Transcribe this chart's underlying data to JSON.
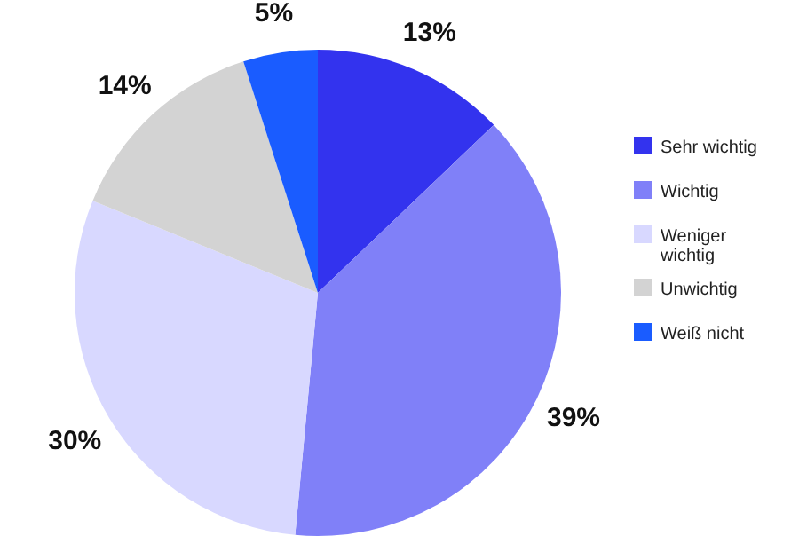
{
  "chart_data": {
    "type": "pie",
    "categories": [
      "Sehr wichtig",
      "Wichtig",
      "Weniger wichtig",
      "Unwichtig",
      "Weiß nicht"
    ],
    "values": [
      13,
      39,
      30,
      14,
      5
    ],
    "colors": [
      "#3333ee",
      "#8080f8",
      "#d8d8ff",
      "#d3d3d3",
      "#1a5cff"
    ],
    "value_labels": [
      "13%",
      "39%",
      "30%",
      "14%",
      "5%"
    ],
    "legend": "right"
  }
}
